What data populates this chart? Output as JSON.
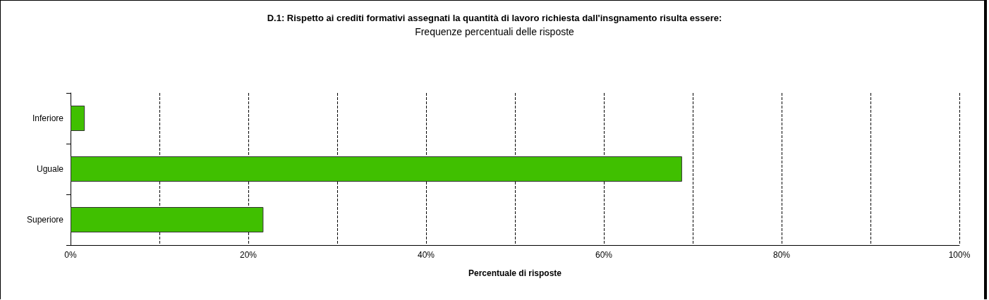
{
  "chart_data": {
    "type": "bar",
    "orientation": "horizontal",
    "title": "D.1: Rispetto ai crediti formativi assegnati la quantità di lavoro richiesta dall'insgnamento risulta essere:",
    "subtitle": "Frequenze percentuali delle risposte",
    "xlabel": "Percentuale di risposte",
    "categories": [
      "Inferiore",
      "Uguale",
      "Superiore"
    ],
    "values": [
      1.6,
      68.8,
      21.7
    ],
    "color": "#40c000",
    "xlim": [
      0,
      100
    ],
    "xticks": [
      {
        "value": 0,
        "label": "0%"
      },
      {
        "value": 10,
        "label": null
      },
      {
        "value": 20,
        "label": "20%"
      },
      {
        "value": 30,
        "label": null
      },
      {
        "value": 40,
        "label": "40%"
      },
      {
        "value": 50,
        "label": null
      },
      {
        "value": 60,
        "label": "60%"
      },
      {
        "value": 70,
        "label": null
      },
      {
        "value": 80,
        "label": "80%"
      },
      {
        "value": 90,
        "label": null
      },
      {
        "value": 100,
        "label": "100%"
      }
    ],
    "grid": "x"
  }
}
